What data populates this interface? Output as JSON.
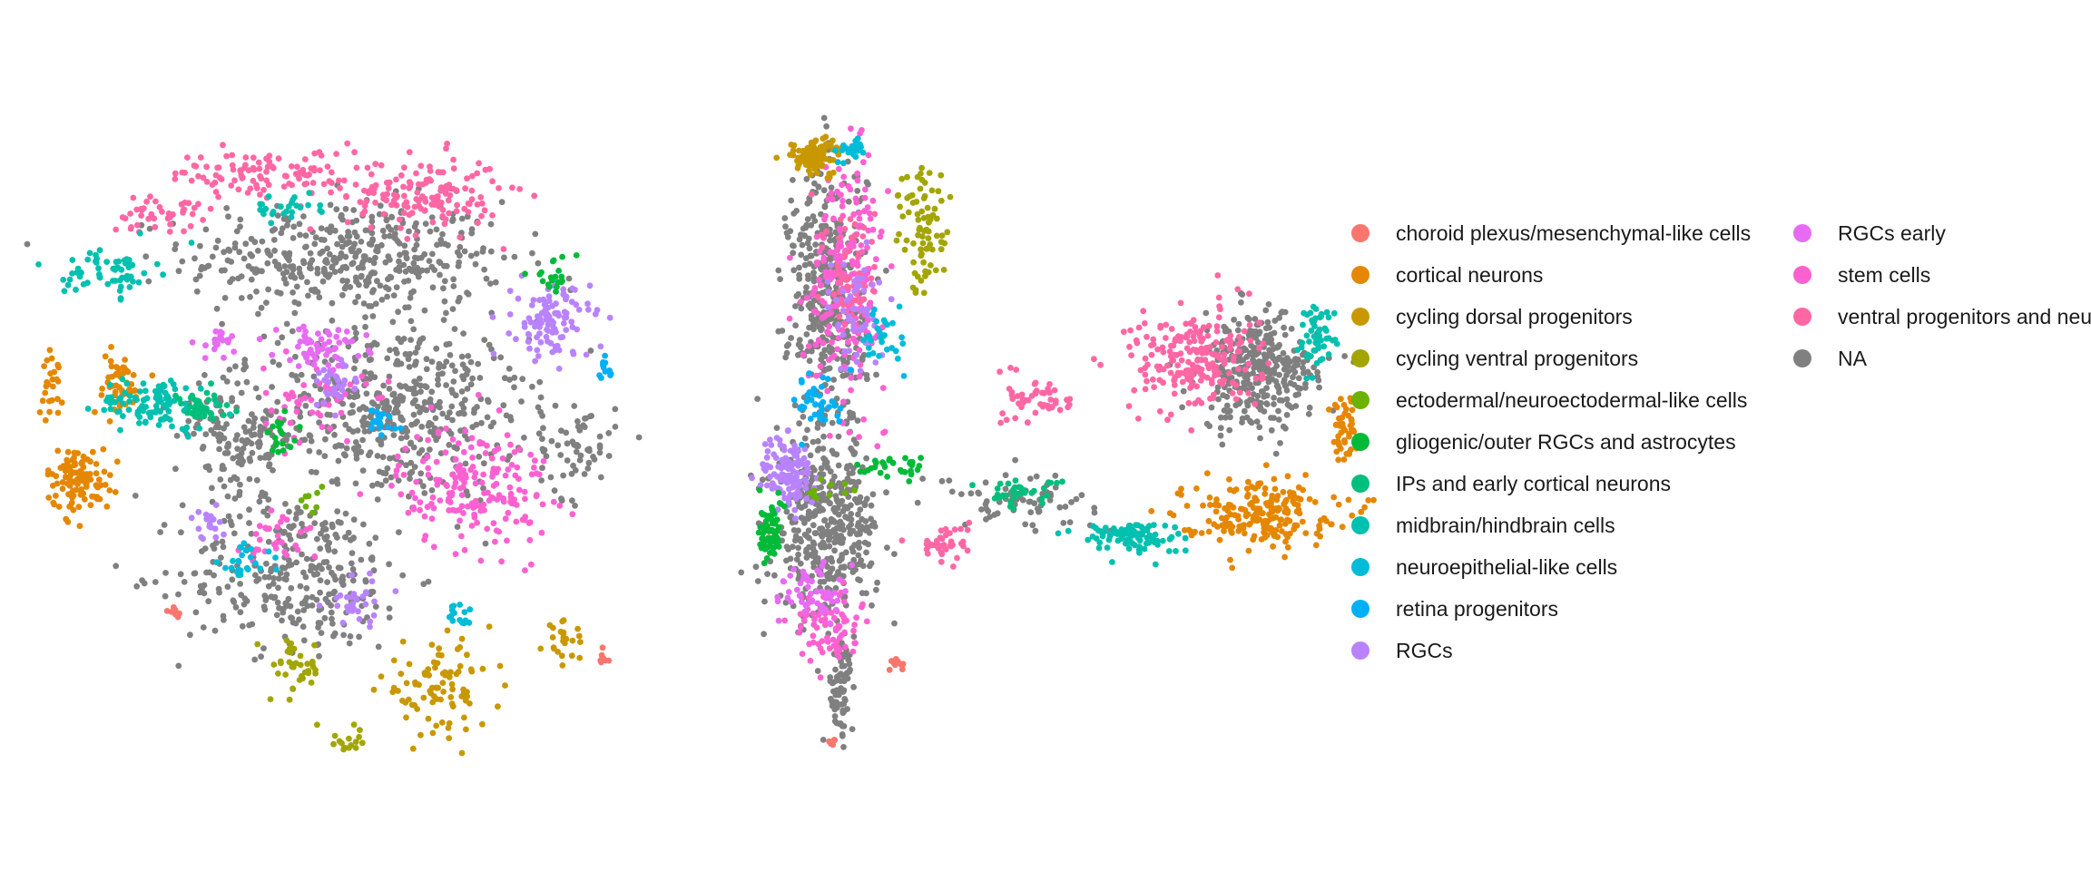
{
  "chart_data": [
    {
      "type": "scatter",
      "panel": "left",
      "title": "",
      "xlabel": "",
      "ylabel": "",
      "axes_visible": false,
      "grid": false,
      "xlim": [
        0,
        100
      ],
      "ylim": [
        0,
        100
      ],
      "clusters": [
        {
          "category": "NA",
          "cx": 50,
          "cy": 78,
          "rx": 25,
          "ry": 9,
          "n": 420
        },
        {
          "category": "NA",
          "cx": 58,
          "cy": 54,
          "rx": 20,
          "ry": 14,
          "n": 480
        },
        {
          "category": "NA",
          "cx": 42,
          "cy": 28,
          "rx": 18,
          "ry": 12,
          "n": 300
        },
        {
          "category": "NA",
          "cx": 86,
          "cy": 48,
          "rx": 6,
          "ry": 8,
          "n": 60
        },
        {
          "category": "NA",
          "cx": 33,
          "cy": 50,
          "rx": 10,
          "ry": 9,
          "n": 140
        },
        {
          "category": "ventral progenitors and neurons",
          "cx": 62,
          "cy": 88,
          "rx": 12,
          "ry": 6,
          "n": 150
        },
        {
          "category": "ventral progenitors and neurons",
          "cx": 38,
          "cy": 91,
          "rx": 16,
          "ry": 4,
          "n": 110
        },
        {
          "category": "ventral progenitors and neurons",
          "cx": 20,
          "cy": 85,
          "rx": 7,
          "ry": 3,
          "n": 40
        },
        {
          "category": "stem cells",
          "cx": 70,
          "cy": 42,
          "rx": 12,
          "ry": 10,
          "n": 190
        },
        {
          "category": "stem cells",
          "cx": 45,
          "cy": 55,
          "rx": 8,
          "ry": 6,
          "n": 50
        },
        {
          "category": "stem cells",
          "cx": 40,
          "cy": 34,
          "rx": 6,
          "ry": 5,
          "n": 30
        },
        {
          "category": "cortical neurons",
          "cx": 8,
          "cy": 43,
          "rx": 5,
          "ry": 5,
          "n": 110
        },
        {
          "category": "cortical neurons",
          "cx": 14,
          "cy": 58,
          "rx": 4,
          "ry": 5,
          "n": 50
        },
        {
          "category": "cortical neurons",
          "cx": 4,
          "cy": 58,
          "rx": 1.5,
          "ry": 5,
          "n": 25
        },
        {
          "category": "midbrain/hindbrain cells",
          "cx": 20,
          "cy": 55,
          "rx": 9,
          "ry": 4,
          "n": 100
        },
        {
          "category": "midbrain/hindbrain cells",
          "cx": 13,
          "cy": 76,
          "rx": 7,
          "ry": 4,
          "n": 60
        },
        {
          "category": "midbrain/hindbrain cells",
          "cx": 40,
          "cy": 86,
          "rx": 6,
          "ry": 2,
          "n": 25
        },
        {
          "category": "IPs and early cortical neurons",
          "cx": 27,
          "cy": 54,
          "rx": 5,
          "ry": 3,
          "n": 40
        },
        {
          "category": "RGCs",
          "cx": 82,
          "cy": 68,
          "rx": 6,
          "ry": 6,
          "n": 110
        },
        {
          "category": "RGCs",
          "cx": 48,
          "cy": 58,
          "rx": 4,
          "ry": 4,
          "n": 35
        },
        {
          "category": "RGCs",
          "cx": 52,
          "cy": 24,
          "rx": 5,
          "ry": 4,
          "n": 30
        },
        {
          "category": "RGCs",
          "cx": 28,
          "cy": 36,
          "rx": 3,
          "ry": 3,
          "n": 20
        },
        {
          "category": "RGCs early",
          "cx": 46,
          "cy": 64,
          "rx": 7,
          "ry": 3,
          "n": 60
        },
        {
          "category": "RGCs early",
          "cx": 30,
          "cy": 65,
          "rx": 4,
          "ry": 3,
          "n": 20
        },
        {
          "category": "retina progenitors",
          "cx": 55,
          "cy": 52,
          "rx": 3,
          "ry": 3,
          "n": 20
        },
        {
          "category": "retina progenitors",
          "cx": 90,
          "cy": 60,
          "rx": 2,
          "ry": 2,
          "n": 12
        },
        {
          "category": "neuroepithelial-like cells",
          "cx": 34,
          "cy": 30,
          "rx": 4,
          "ry": 3,
          "n": 25
        },
        {
          "category": "neuroepithelial-like cells",
          "cx": 68,
          "cy": 22,
          "rx": 3,
          "ry": 3,
          "n": 15
        },
        {
          "category": "gliogenic/outer RGCs and astrocytes",
          "cx": 82,
          "cy": 75,
          "rx": 4,
          "ry": 3,
          "n": 20
        },
        {
          "category": "gliogenic/outer RGCs and astrocytes",
          "cx": 40,
          "cy": 50,
          "rx": 3,
          "ry": 3,
          "n": 18
        },
        {
          "category": "ectodermal/neuroectodermal-like cells",
          "cx": 44,
          "cy": 40,
          "rx": 2,
          "ry": 2,
          "n": 8
        },
        {
          "category": "cycling dorsal progenitors",
          "cx": 64,
          "cy": 10,
          "rx": 9,
          "ry": 7,
          "n": 90
        },
        {
          "category": "cycling dorsal progenitors",
          "cx": 84,
          "cy": 18,
          "rx": 3,
          "ry": 3,
          "n": 25
        },
        {
          "category": "cycling ventral progenitors",
          "cx": 42,
          "cy": 13,
          "rx": 4,
          "ry": 5,
          "n": 40
        },
        {
          "category": "cycling ventral progenitors",
          "cx": 50,
          "cy": 2,
          "rx": 3,
          "ry": 2,
          "n": 15
        },
        {
          "category": "choroid plexus/mesenchymal-like cells",
          "cx": 23,
          "cy": 22,
          "rx": 1,
          "ry": 1,
          "n": 8
        },
        {
          "category": "choroid plexus/mesenchymal-like cells",
          "cx": 90,
          "cy": 15,
          "rx": 1.5,
          "ry": 1.5,
          "n": 8
        }
      ]
    },
    {
      "type": "scatter",
      "panel": "right",
      "title": "",
      "xlabel": "",
      "ylabel": "",
      "axes_visible": false,
      "grid": false,
      "xlim": [
        0,
        100
      ],
      "ylim": [
        0,
        100
      ],
      "clusters": [
        {
          "category": "NA",
          "cx": 15,
          "cy": 35,
          "rx": 8,
          "ry": 14,
          "n": 420
        },
        {
          "category": "NA",
          "cx": 15,
          "cy": 72,
          "rx": 6,
          "ry": 22,
          "n": 400
        },
        {
          "category": "NA",
          "cx": 82,
          "cy": 60,
          "rx": 9,
          "ry": 9,
          "n": 350
        },
        {
          "category": "NA",
          "cx": 17,
          "cy": 10,
          "rx": 2,
          "ry": 8,
          "n": 70
        },
        {
          "category": "NA",
          "cx": 45,
          "cy": 40,
          "rx": 12,
          "ry": 4,
          "n": 70
        },
        {
          "category": "stem cells",
          "cx": 18,
          "cy": 75,
          "rx": 6,
          "ry": 18,
          "n": 220
        },
        {
          "category": "stem cells",
          "cx": 15,
          "cy": 20,
          "rx": 5,
          "ry": 6,
          "n": 80
        },
        {
          "category": "ventral progenitors and neurons",
          "cx": 72,
          "cy": 62,
          "rx": 10,
          "ry": 8,
          "n": 220
        },
        {
          "category": "ventral progenitors and neurons",
          "cx": 48,
          "cy": 56,
          "rx": 5,
          "ry": 4,
          "n": 50
        },
        {
          "category": "ventral progenitors and neurons",
          "cx": 33,
          "cy": 33,
          "rx": 4,
          "ry": 3,
          "n": 40
        },
        {
          "category": "ventral progenitors and neurons",
          "cx": 19,
          "cy": 75,
          "rx": 4,
          "ry": 12,
          "n": 60
        },
        {
          "category": "RGCs",
          "cx": 9,
          "cy": 44,
          "rx": 4,
          "ry": 6,
          "n": 120
        },
        {
          "category": "RGCs",
          "cx": 20,
          "cy": 70,
          "rx": 4,
          "ry": 10,
          "n": 60
        },
        {
          "category": "RGCs early",
          "cx": 12,
          "cy": 25,
          "rx": 5,
          "ry": 5,
          "n": 50
        },
        {
          "category": "cortical neurons",
          "cx": 82,
          "cy": 38,
          "rx": 12,
          "ry": 5,
          "n": 210
        },
        {
          "category": "cortical neurons",
          "cx": 95,
          "cy": 52,
          "rx": 2,
          "ry": 6,
          "n": 50
        },
        {
          "category": "midbrain/hindbrain cells",
          "cx": 62,
          "cy": 34,
          "rx": 8,
          "ry": 2.5,
          "n": 100
        },
        {
          "category": "midbrain/hindbrain cells",
          "cx": 91,
          "cy": 66,
          "rx": 3,
          "ry": 5,
          "n": 50
        },
        {
          "category": "IPs and early cortical neurons",
          "cx": 45,
          "cy": 41,
          "rx": 6,
          "ry": 2,
          "n": 40
        },
        {
          "category": "cycling dorsal progenitors",
          "cx": 13,
          "cy": 94,
          "rx": 4,
          "ry": 3,
          "n": 100
        },
        {
          "category": "cycling ventral progenitors",
          "cx": 30,
          "cy": 82,
          "rx": 4,
          "ry": 10,
          "n": 80
        },
        {
          "category": "neuroepithelial-like cells",
          "cx": 18,
          "cy": 95,
          "rx": 3,
          "ry": 2,
          "n": 25
        },
        {
          "category": "neuroepithelial-like cells",
          "cx": 24,
          "cy": 65,
          "rx": 3,
          "ry": 6,
          "n": 30
        },
        {
          "category": "gliogenic/outer RGCs and astrocytes",
          "cx": 6,
          "cy": 35,
          "rx": 2,
          "ry": 5,
          "n": 60
        },
        {
          "category": "gliogenic/outer RGCs and astrocytes",
          "cx": 26,
          "cy": 45,
          "rx": 6,
          "ry": 2,
          "n": 30
        },
        {
          "category": "ectodermal/neuroectodermal-like cells",
          "cx": 16,
          "cy": 42,
          "rx": 4,
          "ry": 3,
          "n": 10
        },
        {
          "category": "retina progenitors",
          "cx": 14,
          "cy": 55,
          "rx": 4,
          "ry": 5,
          "n": 40
        },
        {
          "category": "choroid plexus/mesenchymal-like cells",
          "cx": 26,
          "cy": 14,
          "rx": 1.2,
          "ry": 1,
          "n": 10
        },
        {
          "category": "choroid plexus/mesenchymal-like cells",
          "cx": 16,
          "cy": 2,
          "rx": 1,
          "ry": 1,
          "n": 6
        }
      ]
    }
  ],
  "legend": {
    "placement": "right",
    "columns": 2,
    "items": [
      {
        "label": "choroid plexus/mesenchymal-like cells",
        "color": "#F8766D"
      },
      {
        "label": "cortical neurons",
        "color": "#E58700"
      },
      {
        "label": "cycling dorsal progenitors",
        "color": "#C99800"
      },
      {
        "label": "cycling ventral progenitors",
        "color": "#A3A500"
      },
      {
        "label": "ectodermal/neuroectodermal-like cells",
        "color": "#6BB100"
      },
      {
        "label": "gliogenic/outer RGCs and astrocytes",
        "color": "#00BA38"
      },
      {
        "label": "IPs and early cortical neurons",
        "color": "#00BF7D"
      },
      {
        "label": "midbrain/hindbrain cells",
        "color": "#00C0AF"
      },
      {
        "label": "neuroepithelial-like cells",
        "color": "#00BCD8"
      },
      {
        "label": "retina progenitors",
        "color": "#00B0F6"
      },
      {
        "label": "RGCs",
        "color": "#B983FF"
      },
      {
        "label": "RGCs early",
        "color": "#E76BF3"
      },
      {
        "label": "stem cells",
        "color": "#FD61D1"
      },
      {
        "label": "ventral progenitors and neurons",
        "color": "#FF67A4"
      },
      {
        "label": "NA",
        "color": "#808080"
      }
    ]
  }
}
